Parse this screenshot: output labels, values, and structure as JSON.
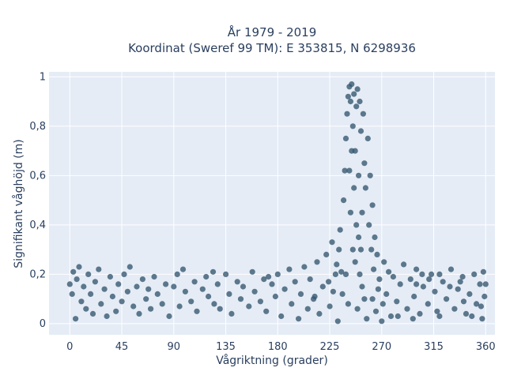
{
  "chart_data": {
    "type": "scatter",
    "title_line1": "År 1979 - 2019",
    "title_line2": "Koordinat (Sweref 99 TM): E 353815, N 6298936",
    "xlabel": "Vågriktning (grader)",
    "ylabel": "Signifikant våghöjd (m)",
    "xlim": [
      -18,
      368
    ],
    "ylim": [
      -0.045,
      1.02
    ],
    "x_ticks": [
      0,
      45,
      90,
      135,
      180,
      225,
      270,
      315,
      360
    ],
    "x_tick_labels": [
      "0",
      "45",
      "90",
      "135",
      "180",
      "225",
      "270",
      "315",
      "360"
    ],
    "y_ticks": [
      0,
      0.2,
      0.4,
      0.6,
      0.8,
      1
    ],
    "y_tick_labels": [
      "0",
      "0,2",
      "0,4",
      "0,6",
      "0,8",
      "1"
    ],
    "grid": true,
    "marker_color": "#34566e",
    "background": "#e5ecf6",
    "series": [
      {
        "points": [
          [
            0,
            0.16
          ],
          [
            2,
            0.12
          ],
          [
            3,
            0.21
          ],
          [
            5,
            0.02
          ],
          [
            6,
            0.18
          ],
          [
            8,
            0.23
          ],
          [
            10,
            0.09
          ],
          [
            12,
            0.15
          ],
          [
            14,
            0.06
          ],
          [
            16,
            0.2
          ],
          [
            18,
            0.12
          ],
          [
            20,
            0.04
          ],
          [
            22,
            0.17
          ],
          [
            25,
            0.22
          ],
          [
            27,
            0.08
          ],
          [
            30,
            0.14
          ],
          [
            32,
            0.03
          ],
          [
            35,
            0.19
          ],
          [
            37,
            0.11
          ],
          [
            40,
            0.05
          ],
          [
            42,
            0.16
          ],
          [
            45,
            0.09
          ],
          [
            47,
            0.2
          ],
          [
            50,
            0.13
          ],
          [
            52,
            0.23
          ],
          [
            55,
            0.07
          ],
          [
            58,
            0.15
          ],
          [
            60,
            0.04
          ],
          [
            63,
            0.18
          ],
          [
            66,
            0.1
          ],
          [
            68,
            0.14
          ],
          [
            70,
            0.06
          ],
          [
            73,
            0.19
          ],
          [
            76,
            0.12
          ],
          [
            80,
            0.08
          ],
          [
            83,
            0.16
          ],
          [
            86,
            0.03
          ],
          [
            90,
            0.15
          ],
          [
            93,
            0.2
          ],
          [
            95,
            0.07
          ],
          [
            98,
            0.22
          ],
          [
            100,
            0.13
          ],
          [
            105,
            0.09
          ],
          [
            108,
            0.17
          ],
          [
            110,
            0.05
          ],
          [
            115,
            0.14
          ],
          [
            118,
            0.19
          ],
          [
            120,
            0.11
          ],
          [
            125,
            0.08
          ],
          [
            128,
            0.16
          ],
          [
            130,
            0.06
          ],
          [
            135,
            0.2
          ],
          [
            138,
            0.12
          ],
          [
            140,
            0.04
          ],
          [
            145,
            0.17
          ],
          [
            148,
            0.1
          ],
          [
            150,
            0.15
          ],
          [
            155,
            0.07
          ],
          [
            158,
            0.21
          ],
          [
            160,
            0.13
          ],
          [
            165,
            0.09
          ],
          [
            168,
            0.18
          ],
          [
            170,
            0.05
          ],
          [
            175,
            0.16
          ],
          [
            178,
            0.11
          ],
          [
            180,
            0.2
          ],
          [
            183,
            0.03
          ],
          [
            186,
            0.14
          ],
          [
            190,
            0.22
          ],
          [
            192,
            0.08
          ],
          [
            195,
            0.17
          ],
          [
            198,
            0.02
          ],
          [
            200,
            0.12
          ],
          [
            203,
            0.23
          ],
          [
            206,
            0.06
          ],
          [
            208,
            0.18
          ],
          [
            211,
            0.1
          ],
          [
            214,
            0.25
          ],
          [
            216,
            0.04
          ],
          [
            219,
            0.15
          ],
          [
            222,
            0.28
          ],
          [
            225,
            0.07
          ],
          [
            227,
            0.33
          ],
          [
            230,
            0.2
          ],
          [
            232,
            0.01
          ],
          [
            234,
            0.38
          ],
          [
            236,
            0.12
          ],
          [
            237,
            0.5
          ],
          [
            238,
            0.62
          ],
          [
            239,
            0.75
          ],
          [
            240,
            0.85
          ],
          [
            241,
            0.92
          ],
          [
            242,
            0.96
          ],
          [
            243,
            0.9
          ],
          [
            244,
            0.97
          ],
          [
            245,
            0.8
          ],
          [
            246,
            0.93
          ],
          [
            247,
            0.7
          ],
          [
            248,
            0.88
          ],
          [
            249,
            0.95
          ],
          [
            250,
            0.6
          ],
          [
            251,
            0.9
          ],
          [
            252,
            0.78
          ],
          [
            253,
            0.45
          ],
          [
            254,
            0.85
          ],
          [
            255,
            0.65
          ],
          [
            256,
            0.55
          ],
          [
            257,
            0.02
          ],
          [
            258,
            0.75
          ],
          [
            259,
            0.4
          ],
          [
            260,
            0.6
          ],
          [
            261,
            0.3
          ],
          [
            262,
            0.48
          ],
          [
            263,
            0.22
          ],
          [
            264,
            0.35
          ],
          [
            265,
            0.05
          ],
          [
            266,
            0.28
          ],
          [
            268,
            0.18
          ],
          [
            270,
            0.01
          ],
          [
            272,
            0.25
          ],
          [
            274,
            0.12
          ],
          [
            276,
            0.21
          ],
          [
            278,
            0.03
          ],
          [
            280,
            0.19
          ],
          [
            283,
            0.09
          ],
          [
            286,
            0.16
          ],
          [
            289,
            0.24
          ],
          [
            292,
            0.06
          ],
          [
            295,
            0.18
          ],
          [
            298,
            0.11
          ],
          [
            300,
            0.22
          ],
          [
            303,
            0.04
          ],
          [
            306,
            0.15
          ],
          [
            310,
            0.08
          ],
          [
            313,
            0.2
          ],
          [
            316,
            0.13
          ],
          [
            320,
            0.03
          ],
          [
            323,
            0.17
          ],
          [
            326,
            0.1
          ],
          [
            330,
            0.22
          ],
          [
            333,
            0.06
          ],
          [
            336,
            0.14
          ],
          [
            340,
            0.19
          ],
          [
            343,
            0.04
          ],
          [
            346,
            0.12
          ],
          [
            350,
            0.2
          ],
          [
            352,
            0.08
          ],
          [
            355,
            0.16
          ],
          [
            357,
            0.02
          ],
          [
            358,
            0.21
          ],
          [
            359,
            0.11
          ],
          [
            360,
            0.16
          ],
          [
            124,
            0.21
          ],
          [
            172,
            0.19
          ],
          [
            212,
            0.11
          ],
          [
            224,
            0.17
          ],
          [
            228,
            0.13
          ],
          [
            231,
            0.24
          ],
          [
            233,
            0.3
          ],
          [
            235,
            0.21
          ],
          [
            244,
            0.7
          ],
          [
            246,
            0.55
          ],
          [
            248,
            0.4
          ],
          [
            250,
            0.35
          ],
          [
            252,
            0.3
          ],
          [
            242,
            0.62
          ],
          [
            243,
            0.45
          ],
          [
            245,
            0.3
          ],
          [
            247,
            0.25
          ],
          [
            251,
            0.2
          ],
          [
            253,
            0.15
          ],
          [
            255,
            0.1
          ],
          [
            249,
            0.06
          ],
          [
            241,
            0.08
          ],
          [
            239,
            0.2
          ],
          [
            262,
            0.1
          ],
          [
            267,
            0.14
          ],
          [
            271,
            0.08
          ],
          [
            284,
            0.03
          ],
          [
            297,
            0.02
          ],
          [
            318,
            0.05
          ],
          [
            341,
            0.09
          ],
          [
            348,
            0.03
          ],
          [
            356,
            0.07
          ],
          [
            300,
            0.16
          ],
          [
            305,
            0.2
          ],
          [
            311,
            0.18
          ],
          [
            320,
            0.2
          ],
          [
            329,
            0.15
          ],
          [
            338,
            0.17
          ]
        ]
      }
    ]
  }
}
